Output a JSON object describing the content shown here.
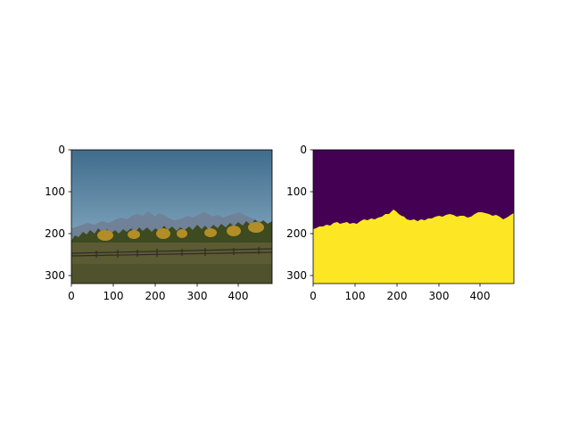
{
  "figure": {
    "panels": [
      {
        "name": "photo",
        "x_ticks": [
          "0",
          "100",
          "200",
          "300",
          "400"
        ],
        "y_ticks": [
          "0",
          "100",
          "200",
          "300"
        ],
        "colors": {
          "sky_top": "#3f6c8c",
          "sky_bottom": "#7ea3bb",
          "mountains": "#6f8298",
          "trees": "#3e4a1f",
          "foliage_yellow": "#b38d25",
          "grass": "#5b5b34",
          "grass_dark": "#4a4d2b",
          "fence": "#2e2c25"
        }
      },
      {
        "name": "segmentation-mask",
        "x_ticks": [
          "0",
          "100",
          "200",
          "300",
          "400"
        ],
        "y_ticks": [
          "0",
          "100",
          "200",
          "300"
        ],
        "colors": {
          "background_class": "#440154",
          "foreground_class": "#fde725"
        }
      }
    ]
  }
}
